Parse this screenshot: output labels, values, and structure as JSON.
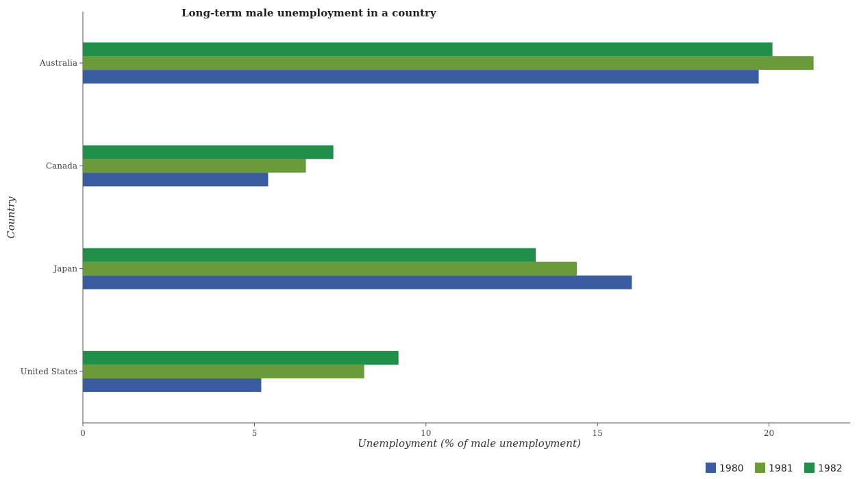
{
  "chart_data": {
    "type": "bar",
    "orientation": "horizontal",
    "title": "Long-term male unemployment in a country",
    "xlabel": "Unemployment (% of male unemployment)",
    "ylabel": "Country",
    "categories": [
      "Australia",
      "Canada",
      "Japan",
      "United States"
    ],
    "series": [
      {
        "name": "1980",
        "color": "#3a5ba0",
        "values": [
          19.7,
          5.4,
          16.0,
          5.2
        ]
      },
      {
        "name": "1981",
        "color": "#6a9a3a",
        "values": [
          21.3,
          6.5,
          14.4,
          8.2
        ]
      },
      {
        "name": "1982",
        "color": "#1f8f4a",
        "values": [
          20.1,
          7.3,
          13.2,
          9.2
        ]
      }
    ],
    "xlim": [
      0,
      22.365
    ],
    "xticks": [
      0,
      5,
      10,
      15,
      20
    ],
    "grid": false,
    "legend_position": "bottom-right"
  }
}
